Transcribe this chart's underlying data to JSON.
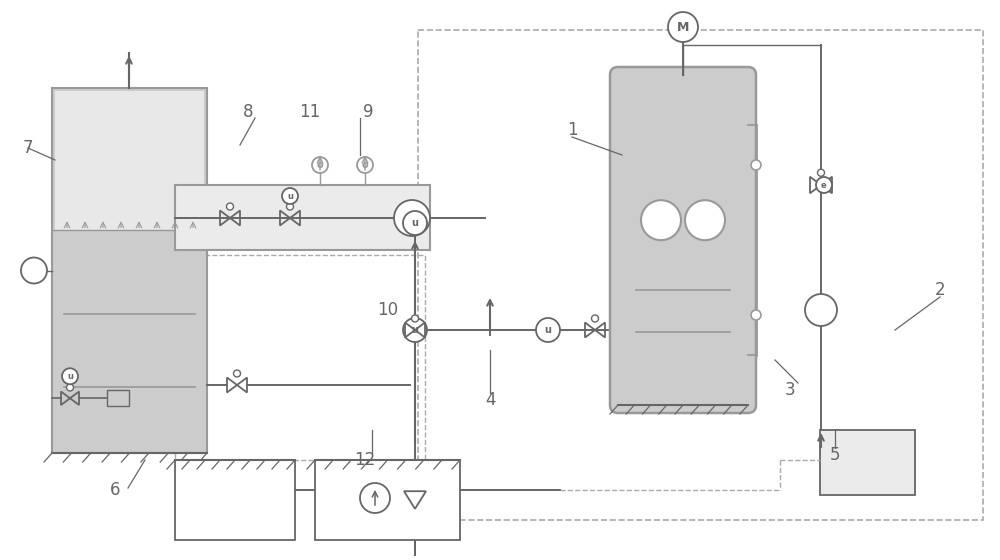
{
  "bg": "#ffffff",
  "lc": "#999999",
  "dc": "#666666",
  "fill_gray": "#cccccc",
  "fill_light": "#e0e0e0",
  "dashed_color": "#aaaaaa",
  "label_numbers": [
    [
      "7",
      28,
      148
    ],
    [
      "8",
      248,
      112
    ],
    [
      "11",
      310,
      112
    ],
    [
      "9",
      368,
      112
    ],
    [
      "10",
      388,
      310
    ],
    [
      "1",
      572,
      130
    ],
    [
      "2",
      940,
      290
    ],
    [
      "3",
      790,
      390
    ],
    [
      "4",
      490,
      400
    ],
    [
      "5",
      835,
      455
    ],
    [
      "6",
      115,
      490
    ],
    [
      "12",
      365,
      460
    ]
  ]
}
